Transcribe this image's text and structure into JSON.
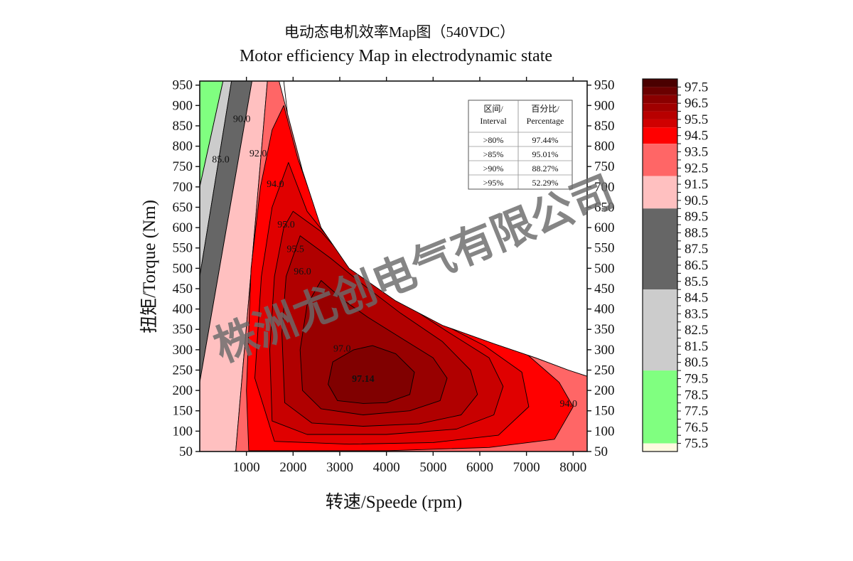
{
  "chart_data": {
    "type": "contour",
    "title": "电动态电机效率Map图（540VDC）",
    "subtitle": "Motor efficiency Map in electrodynamic state",
    "xlabel": "转速/Speede (rpm)",
    "ylabel": "扭矩/Torque (Nm)",
    "xlim": [
      0,
      8300
    ],
    "ylim": [
      50,
      960
    ],
    "x_ticks": [
      1000,
      2000,
      3000,
      4000,
      5000,
      6000,
      7000,
      8000
    ],
    "y_ticks": [
      50,
      100,
      150,
      200,
      250,
      300,
      350,
      400,
      450,
      500,
      550,
      600,
      650,
      700,
      750,
      800,
      850,
      900,
      950
    ],
    "peak": {
      "label": "97.14",
      "x": 3500,
      "y": 230
    },
    "contour_labels": [
      {
        "text": "85.0",
        "x": 450,
        "y": 760
      },
      {
        "text": "90.0",
        "x": 900,
        "y": 860
      },
      {
        "text": "92.0",
        "x": 1250,
        "y": 775
      },
      {
        "text": "94.0",
        "x": 1620,
        "y": 700
      },
      {
        "text": "95.0",
        "x": 1850,
        "y": 600
      },
      {
        "text": "95.5",
        "x": 2050,
        "y": 540
      },
      {
        "text": "96.0",
        "x": 2200,
        "y": 485
      },
      {
        "text": "97.0",
        "x": 3050,
        "y": 295
      },
      {
        "text": "94.0",
        "x": 7900,
        "y": 160
      }
    ],
    "levels": [
      {
        "name": "lt80",
        "color": "#80ff80"
      },
      {
        "name": "80-85",
        "color": "#cccccc"
      },
      {
        "name": "85-90",
        "color": "#666666"
      },
      {
        "name": "90-92",
        "color": "#ffc0c0"
      },
      {
        "name": "92-94",
        "color": "#ff6666"
      },
      {
        "name": "94-95",
        "color": "#ff0000"
      },
      {
        "name": "95-95.5",
        "color": "#e00000"
      },
      {
        "name": "95.5-96",
        "color": "#c80000"
      },
      {
        "name": "96-96.5",
        "color": "#b00000"
      },
      {
        "name": "96.5-97",
        "color": "#980000"
      },
      {
        "name": "gt97",
        "color": "#800000"
      }
    ],
    "colorbar": {
      "labels": [
        "97.5",
        "96.5",
        "95.5",
        "94.5",
        "93.5",
        "92.5",
        "91.5",
        "90.5",
        "89.5",
        "88.5",
        "87.5",
        "86.5",
        "85.5",
        "84.5",
        "83.5",
        "82.5",
        "81.5",
        "80.5",
        "79.5",
        "78.5",
        "77.5",
        "76.5",
        "75.5"
      ],
      "ticks": [
        "97.5",
        "97.0",
        "96.5",
        "96.0",
        "95.5",
        "95.0",
        "94.5",
        "94.0",
        "93.5",
        "93.0",
        "92.5",
        "92.0",
        "91.5",
        "91.0",
        "90.5",
        "90.0",
        "89.5",
        "89.0",
        "88.5",
        "88.0",
        "87.5",
        "87.0",
        "86.5",
        "86.0",
        "85.5",
        "85.0",
        "84.5",
        "84.0",
        "83.5",
        "83.0",
        "82.5",
        "82.0",
        "81.5",
        "81.0",
        "80.5",
        "80.0",
        "79.5",
        "79.0",
        "78.5",
        "78.0",
        "77.5",
        "77.0",
        "76.5",
        "76.0",
        "75.5"
      ],
      "vmin": 75.0,
      "vmax": 98.0,
      "bands": [
        {
          "from": 97.5,
          "to": 98.0,
          "color": "#4a0000"
        },
        {
          "from": 97.0,
          "to": 97.5,
          "color": "#6a0000"
        },
        {
          "from": 96.5,
          "to": 97.0,
          "color": "#8a0000"
        },
        {
          "from": 96.0,
          "to": 96.5,
          "color": "#a00000"
        },
        {
          "from": 95.5,
          "to": 96.0,
          "color": "#b80000"
        },
        {
          "from": 95.0,
          "to": 95.5,
          "color": "#d00000"
        },
        {
          "from": 94.0,
          "to": 95.0,
          "color": "#ff0000"
        },
        {
          "from": 92.0,
          "to": 94.0,
          "color": "#ff6666"
        },
        {
          "from": 90.0,
          "to": 92.0,
          "color": "#ffc0c0"
        },
        {
          "from": 85.0,
          "to": 90.0,
          "color": "#666666"
        },
        {
          "from": 80.0,
          "to": 85.0,
          "color": "#cccccc"
        },
        {
          "from": 75.5,
          "to": 80.0,
          "color": "#80ff80"
        },
        {
          "from": 75.0,
          "to": 75.5,
          "color": "#fffae0"
        }
      ]
    },
    "table": {
      "headers": [
        [
          "区间/",
          "Interval"
        ],
        [
          "百分比/",
          "Percentage"
        ]
      ],
      "rows": [
        [
          ">80%",
          "97.44%"
        ],
        [
          ">85%",
          "95.01%"
        ],
        [
          ">90%",
          "88.27%"
        ],
        [
          ">95%",
          "52.29%"
        ]
      ]
    }
  },
  "watermark": "株洲尤创电气有限公司"
}
